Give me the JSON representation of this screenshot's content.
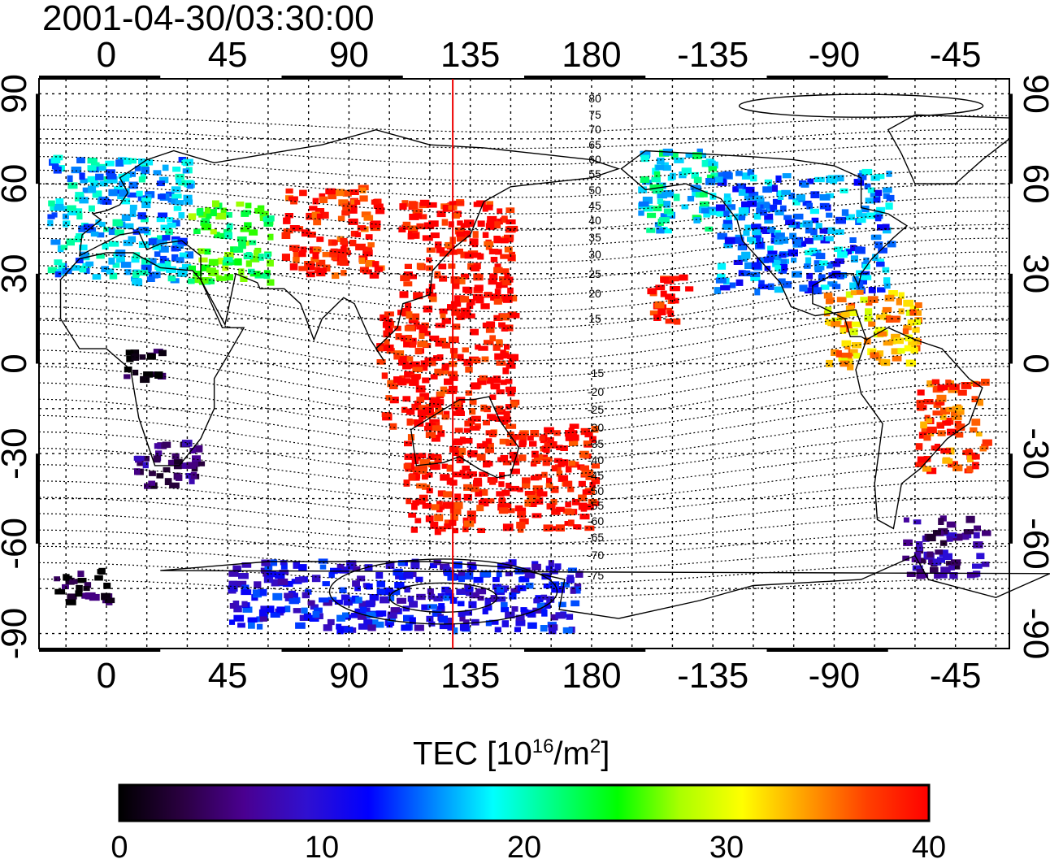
{
  "title": "2001-04-30/03:30:00",
  "map": {
    "projection": "equirectangular",
    "lon_ticks_top": [
      "0",
      "45",
      "90",
      "135",
      "180",
      "-135",
      "-90",
      "-45"
    ],
    "lon_ticks_bottom": [
      "0",
      "45",
      "90",
      "135",
      "180",
      "-135",
      "-90",
      "-45"
    ],
    "lat_ticks_left": [
      "90",
      "60",
      "30",
      "0",
      "-30",
      "-60",
      "-90"
    ],
    "lat_ticks_right": [
      "90",
      "60",
      "30",
      "0",
      "-30",
      "-60",
      "-90"
    ],
    "lon_range": [
      -25,
      335
    ],
    "lat_range": [
      -95,
      95
    ],
    "grid": true,
    "meridian_marker_lon": 128.5,
    "marker_color": "#ee0000",
    "contour_labels_north": [
      "80",
      "75",
      "70",
      "65",
      "60",
      "55",
      "50",
      "45",
      "40",
      "35",
      "30",
      "25",
      "20",
      "15"
    ],
    "contour_labels_south": [
      "-15",
      "-20",
      "-25",
      "-30",
      "-35",
      "-40",
      "-45",
      "-50",
      "-55",
      "-60",
      "-65",
      "-70",
      "-75"
    ]
  },
  "colorbar": {
    "label_main": "TEC  [10",
    "label_exp1": "16",
    "label_mid": "/m",
    "label_exp2": "2",
    "label_end": "]",
    "min": 0,
    "max": 40,
    "tick_labels": [
      "0",
      "10",
      "20",
      "30",
      "40"
    ],
    "colormap": [
      "#000000",
      "#2a0040",
      "#4a0090",
      "#3010d0",
      "#0000ff",
      "#0080ff",
      "#00ffff",
      "#00ff80",
      "#00ff00",
      "#aaff00",
      "#ffff00",
      "#ffa000",
      "#ff4000",
      "#ff0000"
    ]
  },
  "chart_data": {
    "type": "heatmap",
    "title": "2001-04-30/03:30:00",
    "value_range": [
      0,
      40
    ],
    "regions": [
      {
        "lon": [
          -22,
          30
        ],
        "lat": [
          28,
          70
        ],
        "tec": 17
      },
      {
        "lon": [
          30,
          60
        ],
        "lat": [
          28,
          55
        ],
        "tec": 24
      },
      {
        "lon": [
          65,
          100
        ],
        "lat": [
          30,
          60
        ],
        "tec": 39
      },
      {
        "lon": [
          108,
          150
        ],
        "lat": [
          20,
          55
        ],
        "tec": 40
      },
      {
        "lon": [
          100,
          150
        ],
        "lat": [
          -20,
          20
        ],
        "tec": 40
      },
      {
        "lon": [
          110,
          180
        ],
        "lat": [
          -55,
          -20
        ],
        "tec": 40
      },
      {
        "lon": [
          200,
          215
        ],
        "lat": [
          15,
          30
        ],
        "tec": 40
      },
      {
        "lon": [
          197,
          225
        ],
        "lat": [
          45,
          72
        ],
        "tec": 19
      },
      {
        "lon": [
          225,
          290
        ],
        "lat": [
          25,
          65
        ],
        "tec": 15
      },
      {
        "lon": [
          265,
          300
        ],
        "lat": [
          0,
          25
        ],
        "tec": 33
      },
      {
        "lon": [
          300,
          325
        ],
        "lat": [
          -35,
          -5
        ],
        "tec": 37
      },
      {
        "lon": [
          295,
          325
        ],
        "lat": [
          -70,
          -50
        ],
        "tec": 6
      },
      {
        "lon": [
          -20,
          0
        ],
        "lat": [
          -80,
          -68
        ],
        "tec": 2
      },
      {
        "lon": [
          45,
          175
        ],
        "lat": [
          -88,
          -65
        ],
        "tec": 11
      },
      {
        "lon": [
          10,
          35
        ],
        "lat": [
          -40,
          -25
        ],
        "tec": 5
      },
      {
        "lon": [
          5,
          20
        ],
        "lat": [
          -5,
          5
        ],
        "tec": 1
      }
    ]
  }
}
